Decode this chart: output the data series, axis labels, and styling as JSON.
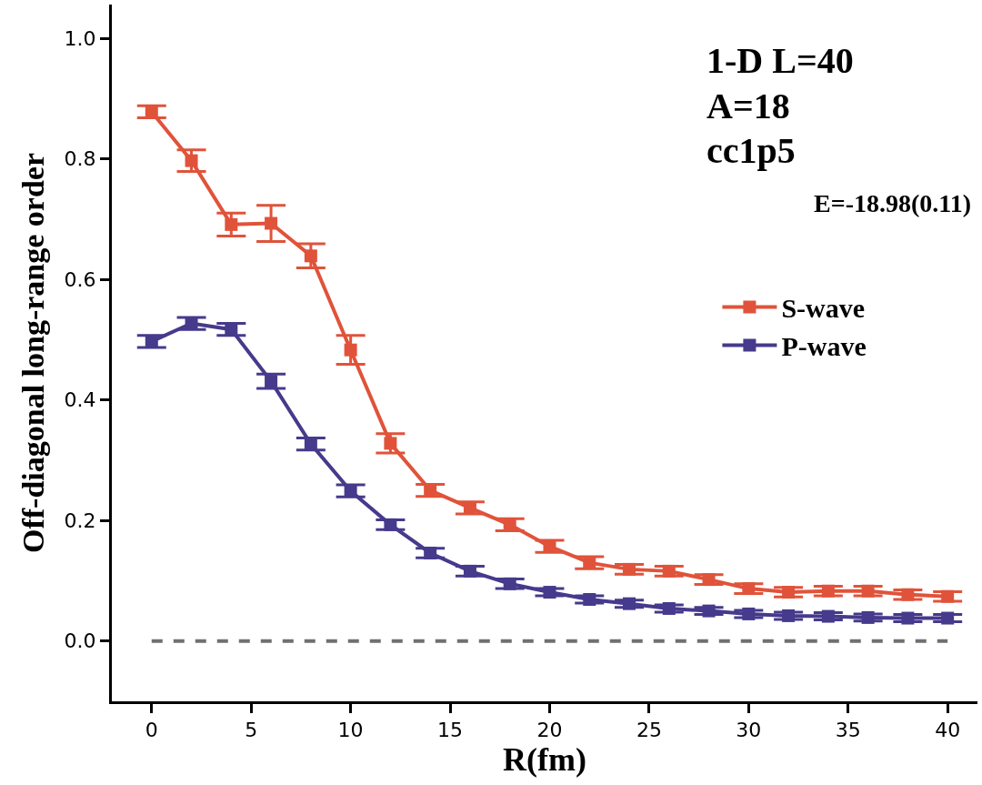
{
  "chart_data": {
    "type": "line",
    "xlabel": "R(fm)",
    "ylabel": "Off-diagonal long-range order",
    "annotations": [
      "1-D L=40",
      "A=18",
      "cc1p5",
      "E=-18.98(0.11)"
    ],
    "x": [
      0,
      2,
      4,
      6,
      8,
      10,
      12,
      14,
      16,
      18,
      20,
      22,
      24,
      26,
      28,
      30,
      32,
      34,
      36,
      38,
      40
    ],
    "series": [
      {
        "name": "S-wave",
        "color": "#e0533a",
        "values": [
          0.878,
          0.797,
          0.691,
          0.693,
          0.639,
          0.483,
          0.328,
          0.25,
          0.221,
          0.193,
          0.157,
          0.13,
          0.119,
          0.116,
          0.102,
          0.087,
          0.081,
          0.083,
          0.083,
          0.077,
          0.074
        ],
        "errors": [
          0.01,
          0.018,
          0.019,
          0.03,
          0.02,
          0.024,
          0.016,
          0.01,
          0.01,
          0.01,
          0.01,
          0.01,
          0.008,
          0.008,
          0.008,
          0.008,
          0.008,
          0.008,
          0.008,
          0.008,
          0.008
        ]
      },
      {
        "name": "P-wave",
        "color": "#463a8c",
        "values": [
          0.497,
          0.527,
          0.517,
          0.431,
          0.327,
          0.249,
          0.193,
          0.146,
          0.116,
          0.095,
          0.081,
          0.069,
          0.062,
          0.054,
          0.05,
          0.045,
          0.042,
          0.041,
          0.039,
          0.038,
          0.038
        ],
        "errors": [
          0.01,
          0.01,
          0.01,
          0.012,
          0.01,
          0.01,
          0.008,
          0.008,
          0.008,
          0.008,
          0.006,
          0.006,
          0.006,
          0.006,
          0.006,
          0.006,
          0.006,
          0.006,
          0.006,
          0.006,
          0.006
        ]
      },
      {
        "color": "#707070",
        "x": [
          0,
          40
        ],
        "values": [
          0,
          0
        ],
        "line_style": "dashed",
        "marker": "none"
      }
    ],
    "xlim": [
      -2,
      41.5
    ],
    "xticks": [
      0,
      5,
      10,
      15,
      20,
      25,
      30,
      35,
      40
    ],
    "ylim": [
      -0.1,
      1.056
    ],
    "yticks": [
      {
        "value": 0,
        "label": "0.0"
      },
      {
        "value": 0.2,
        "label": "0.2"
      },
      {
        "value": 0.4,
        "label": "0.4"
      },
      {
        "value": 0.6,
        "label": "0.6"
      },
      {
        "value": 0.8,
        "label": "0.8"
      },
      {
        "value": 1,
        "label": "1.0"
      }
    ],
    "grid": false,
    "legend": "right",
    "marker": "square",
    "line_style": "solid"
  }
}
